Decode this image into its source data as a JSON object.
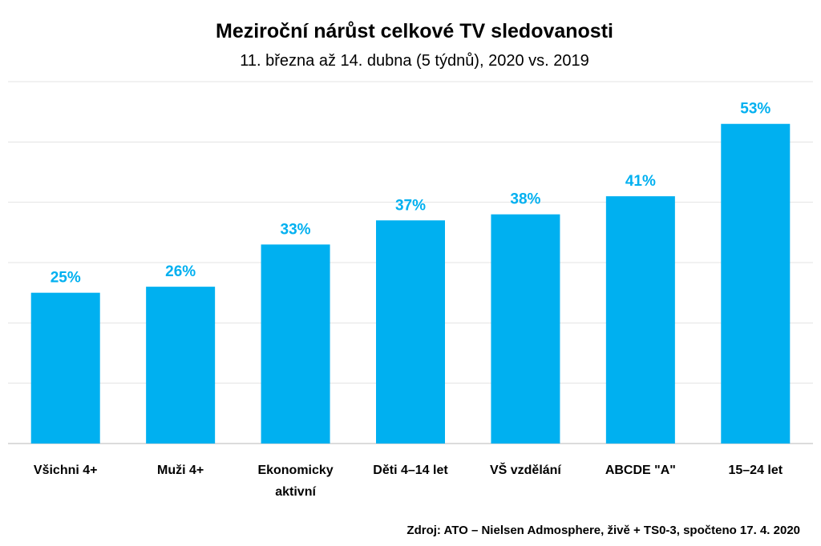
{
  "chart_data": {
    "type": "bar",
    "title": "Meziroční nárůst celkové TV sledovanosti",
    "subtitle": "11. března až 14. dubna (5 týdnů), 2020 vs. 2019",
    "categories": [
      [
        "Všichni 4+"
      ],
      [
        "Muži 4+"
      ],
      [
        "Ekonomicky",
        "aktivní"
      ],
      [
        "Děti 4–14 let"
      ],
      [
        "VŠ vzdělání"
      ],
      [
        "ABCDE \"A\""
      ],
      [
        "15–24 let"
      ]
    ],
    "values": [
      25,
      26,
      33,
      37,
      38,
      41,
      53
    ],
    "value_labels": [
      "25%",
      "26%",
      "33%",
      "37%",
      "38%",
      "41%",
      "53%"
    ],
    "ylim": [
      0,
      60
    ],
    "grid": true,
    "bar_color": "#00b0f0",
    "label_color": "#00b0f0",
    "source": "Zdroj: ATO – Nielsen Admosphere, živě + TS0-3, spočteno 17. 4. 2020"
  }
}
